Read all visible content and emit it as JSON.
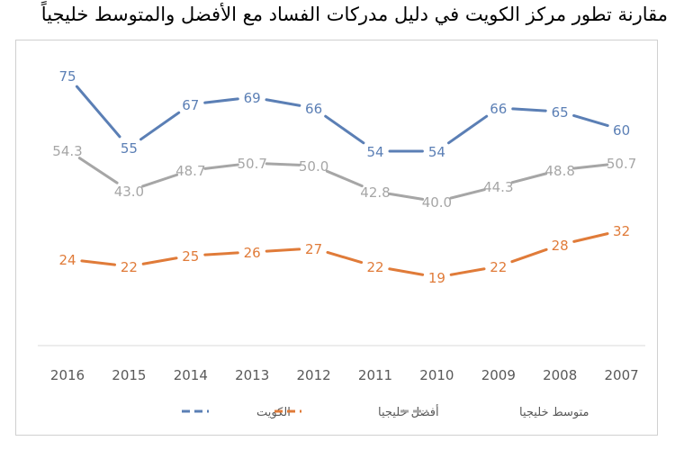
{
  "chart_data": {
    "type": "line",
    "title": "مقارنة تطور مركز الكويت في دليل مدركات الفساد مع الأفضل والمتوسط خليجياً",
    "xlabel": "",
    "ylabel": "",
    "categories": [
      "2016",
      "2015",
      "2014",
      "2013",
      "2012",
      "2011",
      "2010",
      "2009",
      "2008",
      "2007"
    ],
    "series": [
      {
        "name": "الكويت",
        "color": "#5b7fb5",
        "values": [
          "75",
          "55",
          "67",
          "69",
          "66",
          "54",
          "54",
          "66",
          "65",
          "60"
        ]
      },
      {
        "name": "أفضل خليجيا",
        "color": "#e07b39",
        "values": [
          "24",
          "22",
          "25",
          "26",
          "27",
          "22",
          "19",
          "22",
          "28",
          "32"
        ]
      },
      {
        "name": "متوسط خليجيا",
        "color": "#a6a6a6",
        "values": [
          "54.3",
          "43.0",
          "48.7",
          "50.7",
          "50.0",
          "42.8",
          "40.0",
          "44.3",
          "48.8",
          "50.7"
        ]
      }
    ],
    "ylim": [
      0,
      85
    ],
    "grid": false,
    "legend_position": "bottom",
    "data_labels": true
  }
}
